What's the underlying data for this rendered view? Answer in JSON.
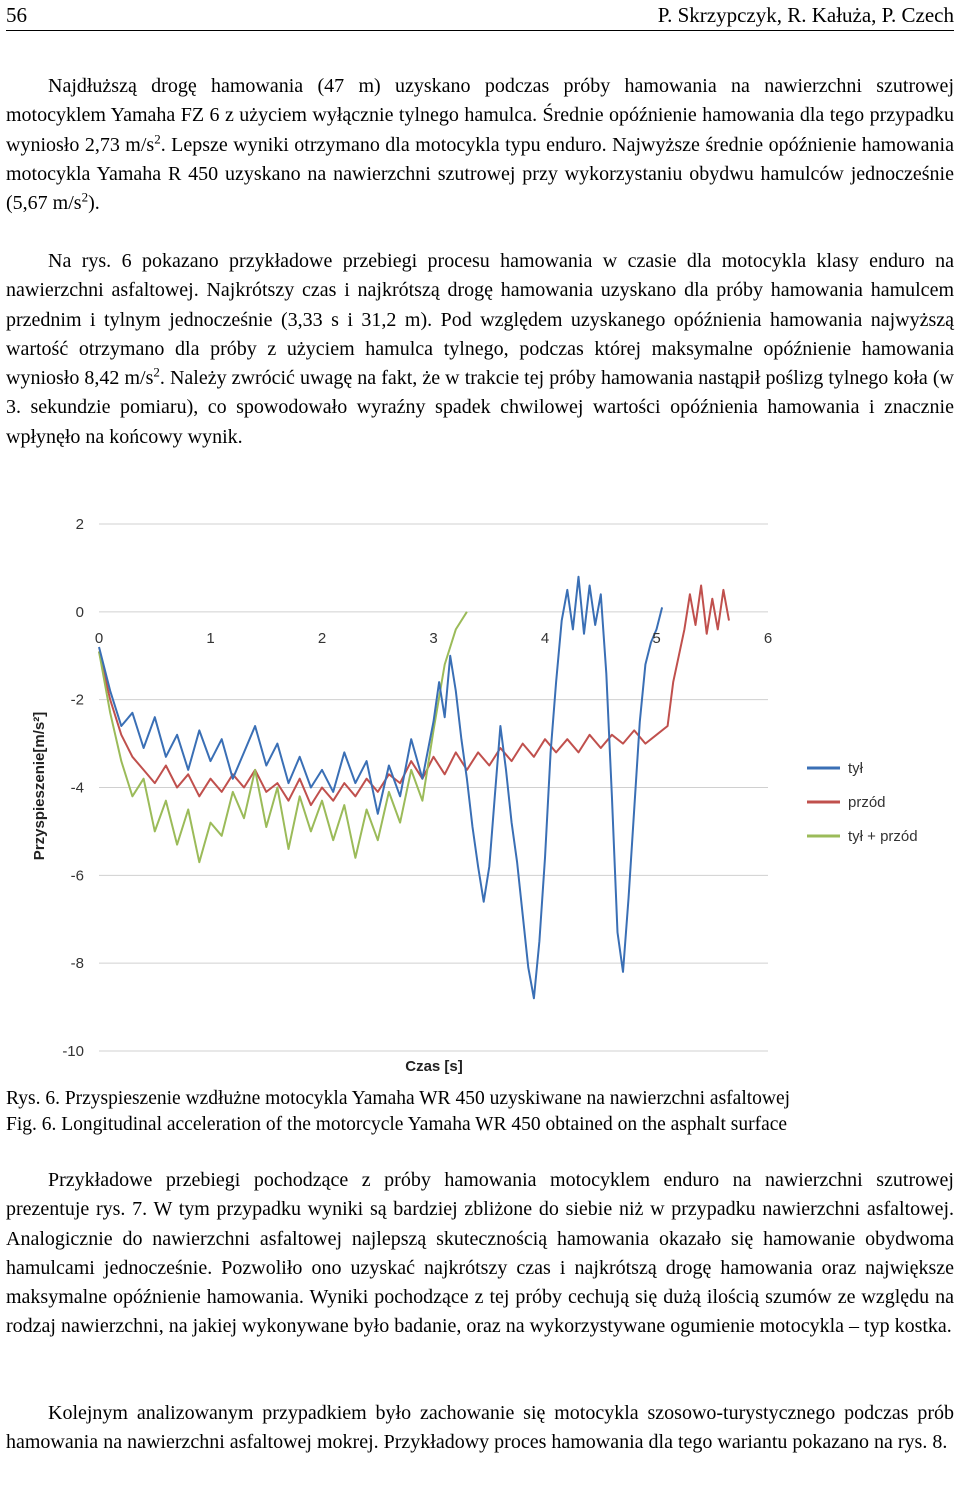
{
  "header": {
    "page_number": "56",
    "authors": "P. Skrzypczyk, R. Kałuża, P. Czech"
  },
  "paragraphs": {
    "p1": {
      "a": "Najdłuższą drogę hamowania (47 m) uzyskano podczas próby hamowania na nawierzchni szutrowej motocyklem Yamaha FZ 6 z użyciem wyłącznie tylnego hamulca. Średnie opóźnienie hamowania dla tego przypadku wyniosło 2,73 m/s",
      "sup": "2",
      "b": ". Lepsze wyniki otrzymano dla motocykla typu enduro. Najwyższe średnie opóźnienie hamowania motocykla Yamaha R 450 uzyskano na nawierzchni szutrowej przy wykorzystaniu obydwu hamulców jednocześnie (5,67 m/s",
      "c": ")."
    },
    "p2": {
      "a": "Na rys. 6 pokazano przykładowe przebiegi procesu hamowania w czasie dla motocykla klasy enduro na nawierzchni asfaltowej. Najkrótszy czas i najkrótszą drogę hamowania uzyskano dla próby hamowania hamulcem przednim i tylnym jednocześnie (3,33 s i 31,2 m). Pod względem uzyskanego opóźnienia hamowania najwyższą wartość otrzymano dla próby z użyciem hamulca tylnego, podczas której maksymalne opóźnienie hamowania wyniosło 8,42 m/s",
      "sup": "2",
      "b": ". Należy zwrócić uwagę na fakt, że w trakcie tej próby hamowania nastąpił poślizg tylnego koła (w 3. sekundzie pomiaru), co spowodowało wyraźny spadek chwilowej wartości opóźnienia hamowania i znacznie wpłynęło na końcowy wynik."
    },
    "p3": "Przykładowe przebiegi pochodzące z próby hamowania motocyklem enduro na nawierzchni szutrowej prezentuje rys. 7. W tym przypadku wyniki są bardziej zbliżone do siebie niż w przypadku nawierzchni asfaltowej. Analogicznie do nawierzchni asfaltowej najlepszą skutecznością hamowania okazało się hamowanie obydwoma hamulcami jednocześnie. Pozwoliło ono uzyskać najkrótszy czas i najkrótszą drogę hamowania oraz największe maksymalne opóźnienie hamowania. Wyniki pochodzące z tej próby cechują się dużą ilością szumów ze względu na rodzaj nawierzchni, na jakiej wykonywane było badanie, oraz na wykorzystywane ogumienie motocykla – typ kostka.",
    "p4": "Kolejnym analizowanym przypadkiem było zachowanie się motocykla szosowo-turystycznego podczas prób hamowania na nawierzchni asfaltowej mokrej. Przykładowy proces hamowania dla tego wariantu pokazano na rys. 8."
  },
  "captions": {
    "pl": "Rys. 6. Przyspieszenie wzdłużne motocykla Yamaha WR 450 uzyskiwane na nawierzchni asfaltowej",
    "en": "Fig. 6. Longitudinal acceleration of the motorcycle Yamaha WR 450 obtained on the asphalt surface"
  },
  "chart_data": {
    "type": "line",
    "xlabel": "Czas [s]",
    "ylabel": "Przyspieszenie[m/s²]",
    "xlim": [
      0,
      6
    ],
    "ylim": [
      -10,
      2
    ],
    "x_ticks": [
      "0",
      "1",
      "2",
      "3",
      "4",
      "5",
      "6"
    ],
    "y_ticks": [
      "2",
      "0",
      "-2",
      "-4",
      "-6",
      "-8",
      "-10"
    ],
    "grid": "horizontal",
    "legend_position": "right",
    "series": [
      {
        "name": "tył",
        "color": "#3a6fb5",
        "points": [
          [
            0.0,
            -0.8
          ],
          [
            0.1,
            -1.8
          ],
          [
            0.2,
            -2.6
          ],
          [
            0.3,
            -2.3
          ],
          [
            0.4,
            -3.1
          ],
          [
            0.5,
            -2.4
          ],
          [
            0.6,
            -3.3
          ],
          [
            0.7,
            -2.8
          ],
          [
            0.8,
            -3.6
          ],
          [
            0.9,
            -2.7
          ],
          [
            1.0,
            -3.4
          ],
          [
            1.1,
            -2.9
          ],
          [
            1.2,
            -3.8
          ],
          [
            1.3,
            -3.2
          ],
          [
            1.4,
            -2.6
          ],
          [
            1.5,
            -3.5
          ],
          [
            1.6,
            -3.0
          ],
          [
            1.7,
            -3.9
          ],
          [
            1.8,
            -3.3
          ],
          [
            1.9,
            -4.0
          ],
          [
            2.0,
            -3.6
          ],
          [
            2.1,
            -4.1
          ],
          [
            2.2,
            -3.2
          ],
          [
            2.3,
            -3.9
          ],
          [
            2.4,
            -3.4
          ],
          [
            2.5,
            -4.6
          ],
          [
            2.6,
            -3.5
          ],
          [
            2.7,
            -4.2
          ],
          [
            2.8,
            -2.9
          ],
          [
            2.9,
            -3.8
          ],
          [
            3.0,
            -2.5
          ],
          [
            3.05,
            -1.6
          ],
          [
            3.1,
            -2.4
          ],
          [
            3.15,
            -1.0
          ],
          [
            3.2,
            -1.8
          ],
          [
            3.25,
            -2.9
          ],
          [
            3.3,
            -3.8
          ],
          [
            3.35,
            -4.9
          ],
          [
            3.4,
            -5.8
          ],
          [
            3.45,
            -6.6
          ],
          [
            3.5,
            -5.8
          ],
          [
            3.55,
            -4.2
          ],
          [
            3.6,
            -2.6
          ],
          [
            3.65,
            -3.6
          ],
          [
            3.7,
            -4.8
          ],
          [
            3.75,
            -5.7
          ],
          [
            3.8,
            -6.9
          ],
          [
            3.85,
            -8.1
          ],
          [
            3.9,
            -8.8
          ],
          [
            3.95,
            -7.5
          ],
          [
            4.0,
            -5.6
          ],
          [
            4.05,
            -3.2
          ],
          [
            4.1,
            -1.6
          ],
          [
            4.15,
            -0.2
          ],
          [
            4.2,
            0.5
          ],
          [
            4.25,
            -0.4
          ],
          [
            4.3,
            0.8
          ],
          [
            4.35,
            -0.5
          ],
          [
            4.4,
            0.6
          ],
          [
            4.45,
            -0.3
          ],
          [
            4.5,
            0.4
          ],
          [
            4.55,
            -1.4
          ],
          [
            4.6,
            -4.2
          ],
          [
            4.65,
            -7.3
          ],
          [
            4.7,
            -8.2
          ],
          [
            4.75,
            -6.5
          ],
          [
            4.8,
            -4.5
          ],
          [
            4.85,
            -2.5
          ],
          [
            4.9,
            -1.2
          ],
          [
            4.95,
            -0.7
          ],
          [
            5.0,
            -0.4
          ],
          [
            5.05,
            0.1
          ]
        ]
      },
      {
        "name": "przód",
        "color": "#c0504d",
        "points": [
          [
            0.0,
            -0.9
          ],
          [
            0.1,
            -2.0
          ],
          [
            0.2,
            -2.8
          ],
          [
            0.3,
            -3.3
          ],
          [
            0.4,
            -3.6
          ],
          [
            0.5,
            -3.9
          ],
          [
            0.6,
            -3.5
          ],
          [
            0.7,
            -4.0
          ],
          [
            0.8,
            -3.7
          ],
          [
            0.9,
            -4.2
          ],
          [
            1.0,
            -3.8
          ],
          [
            1.1,
            -4.1
          ],
          [
            1.2,
            -3.7
          ],
          [
            1.3,
            -4.0
          ],
          [
            1.4,
            -3.6
          ],
          [
            1.5,
            -4.1
          ],
          [
            1.6,
            -3.9
          ],
          [
            1.7,
            -4.3
          ],
          [
            1.8,
            -3.8
          ],
          [
            1.9,
            -4.4
          ],
          [
            2.0,
            -4.0
          ],
          [
            2.1,
            -4.3
          ],
          [
            2.2,
            -3.9
          ],
          [
            2.3,
            -4.2
          ],
          [
            2.4,
            -3.8
          ],
          [
            2.5,
            -4.1
          ],
          [
            2.6,
            -3.7
          ],
          [
            2.7,
            -3.9
          ],
          [
            2.8,
            -3.4
          ],
          [
            2.9,
            -3.8
          ],
          [
            3.0,
            -3.3
          ],
          [
            3.1,
            -3.7
          ],
          [
            3.2,
            -3.2
          ],
          [
            3.3,
            -3.6
          ],
          [
            3.4,
            -3.2
          ],
          [
            3.5,
            -3.5
          ],
          [
            3.6,
            -3.1
          ],
          [
            3.7,
            -3.4
          ],
          [
            3.8,
            -3.0
          ],
          [
            3.9,
            -3.3
          ],
          [
            4.0,
            -2.9
          ],
          [
            4.1,
            -3.2
          ],
          [
            4.2,
            -2.9
          ],
          [
            4.3,
            -3.2
          ],
          [
            4.4,
            -2.8
          ],
          [
            4.5,
            -3.1
          ],
          [
            4.6,
            -2.8
          ],
          [
            4.7,
            -3.0
          ],
          [
            4.8,
            -2.7
          ],
          [
            4.9,
            -3.0
          ],
          [
            5.0,
            -2.8
          ],
          [
            5.1,
            -2.6
          ],
          [
            5.15,
            -1.6
          ],
          [
            5.2,
            -1.0
          ],
          [
            5.25,
            -0.4
          ],
          [
            5.3,
            0.4
          ],
          [
            5.35,
            -0.3
          ],
          [
            5.4,
            0.6
          ],
          [
            5.45,
            -0.5
          ],
          [
            5.5,
            0.3
          ],
          [
            5.55,
            -0.4
          ],
          [
            5.6,
            0.5
          ],
          [
            5.65,
            -0.2
          ]
        ]
      },
      {
        "name": "tył + przód",
        "color": "#9bbb59",
        "points": [
          [
            0.0,
            -0.9
          ],
          [
            0.1,
            -2.3
          ],
          [
            0.2,
            -3.4
          ],
          [
            0.3,
            -4.2
          ],
          [
            0.4,
            -3.8
          ],
          [
            0.5,
            -5.0
          ],
          [
            0.6,
            -4.3
          ],
          [
            0.7,
            -5.3
          ],
          [
            0.8,
            -4.5
          ],
          [
            0.9,
            -5.7
          ],
          [
            1.0,
            -4.8
          ],
          [
            1.1,
            -5.1
          ],
          [
            1.2,
            -4.1
          ],
          [
            1.3,
            -4.7
          ],
          [
            1.4,
            -3.6
          ],
          [
            1.5,
            -4.9
          ],
          [
            1.6,
            -4.0
          ],
          [
            1.7,
            -5.4
          ],
          [
            1.8,
            -4.2
          ],
          [
            1.9,
            -5.0
          ],
          [
            2.0,
            -4.3
          ],
          [
            2.1,
            -5.2
          ],
          [
            2.2,
            -4.4
          ],
          [
            2.3,
            -5.6
          ],
          [
            2.4,
            -4.5
          ],
          [
            2.5,
            -5.2
          ],
          [
            2.6,
            -4.1
          ],
          [
            2.7,
            -4.8
          ],
          [
            2.8,
            -3.6
          ],
          [
            2.9,
            -4.3
          ],
          [
            3.0,
            -2.7
          ],
          [
            3.1,
            -1.2
          ],
          [
            3.2,
            -0.4
          ],
          [
            3.3,
            0.0
          ]
        ]
      }
    ]
  }
}
